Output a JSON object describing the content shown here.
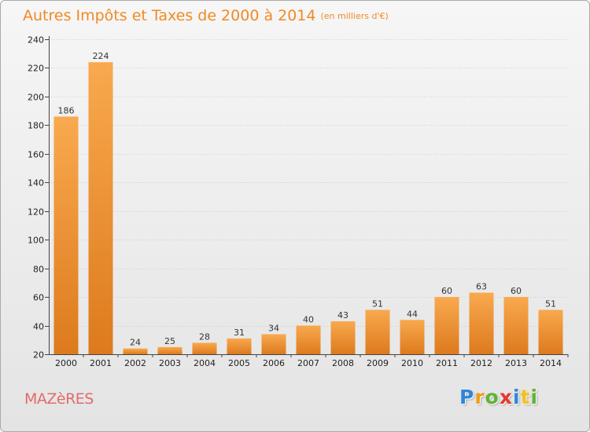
{
  "title": "Autres Impôts et Taxes de 2000 à 2014",
  "subtitle": "(en milliers d'€)",
  "town": "MAZèRES",
  "brand": {
    "text": "Proxiti",
    "letter_colors": [
      "#2f86d8",
      "#f29a1b",
      "#5fb336",
      "#e23a2e",
      "#2f86d8",
      "#f2c21b",
      "#5fb336"
    ]
  },
  "colors": {
    "title": "#f08a24",
    "bar_light": "#f9a94f",
    "bar_dark": "#dd7a1d",
    "axis": "#444444",
    "grid": "#cfcfcf",
    "town": "#e36a6a"
  },
  "chart_data": {
    "type": "bar",
    "title": "Autres Impôts et Taxes de 2000 à 2014",
    "subtitle": "(en milliers d'€)",
    "categories": [
      "2000",
      "2001",
      "2002",
      "2003",
      "2004",
      "2005",
      "2006",
      "2007",
      "2008",
      "2009",
      "2010",
      "2011",
      "2012",
      "2013",
      "2014"
    ],
    "values": [
      186,
      224,
      24,
      25,
      28,
      31,
      34,
      40,
      43,
      51,
      44,
      60,
      63,
      60,
      51
    ],
    "ylim": [
      20,
      240
    ],
    "yticks": [
      20,
      40,
      60,
      80,
      100,
      120,
      140,
      160,
      180,
      200,
      220,
      240
    ],
    "grid": true,
    "data_labels": true
  }
}
